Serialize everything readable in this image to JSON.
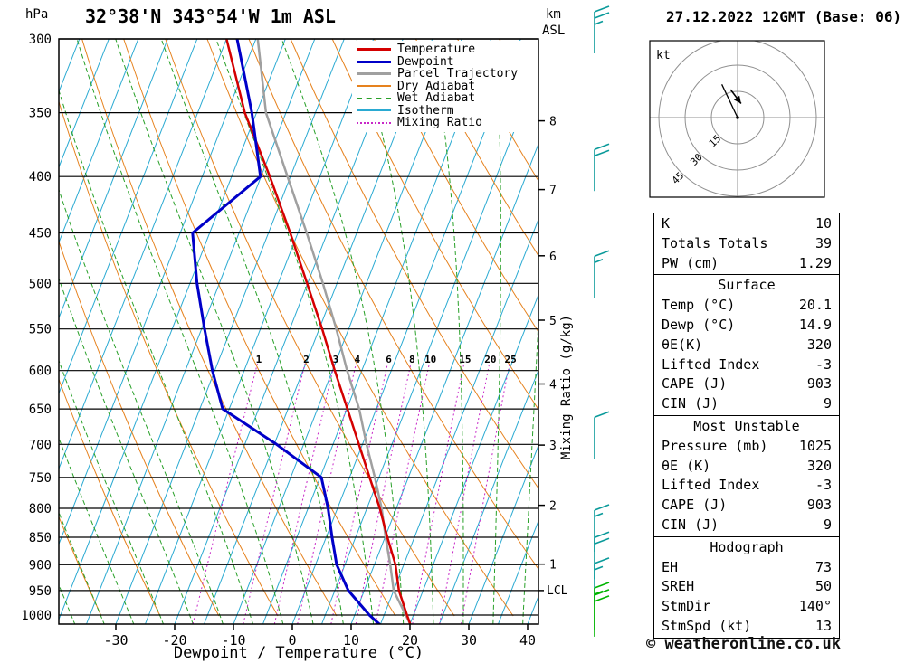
{
  "header": {
    "station_title": "32°38'N 343°54'W 1m ASL",
    "datetime_title": "27.12.2022 12GMT (Base: 06)"
  },
  "footer": {
    "copyright": "© weatheronline.co.uk"
  },
  "axes": {
    "pressure_unit": "hPa",
    "pressure_levels": [
      300,
      350,
      400,
      450,
      500,
      550,
      600,
      650,
      700,
      750,
      800,
      850,
      900,
      950,
      1000
    ],
    "km_unit_line1": "km",
    "km_unit_line2": "ASL",
    "km_levels": [
      {
        "km": 1,
        "p": 899
      },
      {
        "km": 2,
        "p": 795
      },
      {
        "km": 3,
        "p": 701
      },
      {
        "km": 4,
        "p": 617
      },
      {
        "km": 5,
        "p": 540
      },
      {
        "km": 6,
        "p": 472
      },
      {
        "km": 7,
        "p": 411
      },
      {
        "km": 8,
        "p": 356
      }
    ],
    "lcl": {
      "label": "LCL",
      "p": 950
    },
    "x_axis_title": "Dewpoint / Temperature (°C)",
    "x_ticks": [
      -30,
      -20,
      -10,
      0,
      10,
      20,
      30,
      40
    ],
    "mixing_ratio_axis_label": "Mixing Ratio (g/kg)"
  },
  "legend": [
    {
      "label": "Temperature",
      "color": "#d40000",
      "style": "solid",
      "width": 3
    },
    {
      "label": "Dewpoint",
      "color": "#0000c8",
      "style": "solid",
      "width": 3
    },
    {
      "label": "Parcel Trajectory",
      "color": "#a0a0a0",
      "style": "solid",
      "width": 3
    },
    {
      "label": "Dry Adiabat",
      "color": "#e6821e",
      "style": "solid",
      "width": 2
    },
    {
      "label": "Wet Adiabat",
      "color": "#28a028",
      "style": "dashed",
      "width": 2
    },
    {
      "label": "Isotherm",
      "color": "#2aaad2",
      "style": "solid",
      "width": 2
    },
    {
      "label": "Mixing Ratio",
      "color": "#c828c8",
      "style": "dotted",
      "width": 2
    }
  ],
  "chart_data": {
    "type": "skew-t-log-p-sounding",
    "pressure_top_hpa": 300,
    "pressure_bottom_hpa": 1020,
    "isotherms_c": {
      "start": -80,
      "end": 40,
      "step": 5
    },
    "dry_adiabats_k": {
      "start": 230,
      "end": 440,
      "step": 10
    },
    "wet_adiabats_c": {
      "start": -40,
      "end": 40,
      "step": 5
    },
    "mixing_ratio_lines_g_kg": [
      1,
      2,
      3,
      4,
      6,
      8,
      10,
      15,
      20,
      25
    ],
    "temperature_profile_p_t": [
      [
        1020,
        20.1
      ],
      [
        1000,
        18.9
      ],
      [
        950,
        15.9
      ],
      [
        900,
        13.6
      ],
      [
        850,
        10.4
      ],
      [
        800,
        7.2
      ],
      [
        750,
        3.4
      ],
      [
        700,
        -0.6
      ],
      [
        650,
        -4.9
      ],
      [
        600,
        -9.6
      ],
      [
        550,
        -14.5
      ],
      [
        500,
        -20.1
      ],
      [
        450,
        -26.3
      ],
      [
        400,
        -33.5
      ],
      [
        350,
        -42.0
      ],
      [
        300,
        -50.0
      ]
    ],
    "dewpoint_profile_p_t": [
      [
        1020,
        14.9
      ],
      [
        1000,
        12.5
      ],
      [
        950,
        7.3
      ],
      [
        900,
        3.6
      ],
      [
        850,
        1.0
      ],
      [
        800,
        -1.6
      ],
      [
        750,
        -4.8
      ],
      [
        700,
        -14.6
      ],
      [
        650,
        -26.1
      ],
      [
        600,
        -30.4
      ],
      [
        550,
        -34.5
      ],
      [
        500,
        -38.8
      ],
      [
        450,
        -42.9
      ],
      [
        400,
        -35.1
      ],
      [
        350,
        -40.8
      ],
      [
        300,
        -48.2
      ]
    ],
    "parcel_profile_p_t": [
      [
        1020,
        20.1
      ],
      [
        950,
        15.0
      ],
      [
        900,
        12.7
      ],
      [
        850,
        10.1
      ],
      [
        800,
        7.5
      ],
      [
        750,
        4.3
      ],
      [
        700,
        0.7
      ],
      [
        650,
        -2.9
      ],
      [
        600,
        -7.5
      ],
      [
        550,
        -12.1
      ],
      [
        500,
        -17.4
      ],
      [
        450,
        -23.5
      ],
      [
        400,
        -30.5
      ],
      [
        350,
        -38.4
      ],
      [
        300,
        -44.7
      ]
    ]
  },
  "wind_barbs": [
    {
      "p": 300,
      "full": 2,
      "half": 1,
      "color": "#0a9a9a"
    },
    {
      "p": 400,
      "full": 2,
      "half": 0,
      "color": "#0a9a9a"
    },
    {
      "p": 500,
      "full": 1,
      "half": 1,
      "color": "#0a9a9a"
    },
    {
      "p": 700,
      "full": 1,
      "half": 0,
      "color": "#0a9a9a"
    },
    {
      "p": 850,
      "full": 1,
      "half": 1,
      "color": "#0a9a9a"
    },
    {
      "p": 900,
      "full": 2,
      "half": 0,
      "color": "#0a9a9a"
    },
    {
      "p": 950,
      "full": 1,
      "half": 1,
      "color": "#0a9a9a"
    },
    {
      "p": 1000,
      "full": 1,
      "half": 1,
      "color": "#00b400"
    },
    {
      "p": 1015,
      "full": 2,
      "half": 0,
      "color": "#00b400"
    }
  ],
  "hodograph": {
    "unit_label": "kt",
    "rings_kt": [
      15,
      30,
      45
    ],
    "trace_kt": [
      [
        -9,
        19
      ],
      [
        0,
        0
      ]
    ],
    "arrow_kt": [
      [
        -4,
        16
      ],
      [
        2,
        8
      ]
    ]
  },
  "stats_panels": [
    {
      "name": "indices",
      "heading": null,
      "rows": [
        [
          "K",
          "10"
        ],
        [
          "Totals Totals",
          "39"
        ],
        [
          "PW (cm)",
          "1.29"
        ]
      ]
    },
    {
      "name": "surface",
      "heading": "Surface",
      "rows": [
        [
          "Temp (°C)",
          "20.1"
        ],
        [
          "Dewp (°C)",
          "14.9"
        ],
        [
          "θE(K)",
          "320"
        ],
        [
          "Lifted Index",
          "-3"
        ],
        [
          "CAPE (J)",
          "903"
        ],
        [
          "CIN (J)",
          "9"
        ]
      ]
    },
    {
      "name": "most-unstable",
      "heading": "Most Unstable",
      "rows": [
        [
          "Pressure (mb)",
          "1025"
        ],
        [
          "θE (K)",
          "320"
        ],
        [
          "Lifted Index",
          "-3"
        ],
        [
          "CAPE (J)",
          "903"
        ],
        [
          "CIN (J)",
          "9"
        ]
      ]
    },
    {
      "name": "hodograph",
      "heading": "Hodograph",
      "rows": [
        [
          "EH",
          "73"
        ],
        [
          "SREH",
          "50"
        ],
        [
          "StmDir",
          "140°"
        ],
        [
          "StmSpd (kt)",
          "13"
        ]
      ]
    }
  ],
  "colors": {
    "temperature": "#d40000",
    "dewpoint": "#0000c8",
    "parcel": "#a0a0a0",
    "dry_adiabat": "#e6821e",
    "wet_adiabat": "#28a028",
    "isotherm": "#2aaad2",
    "mixing_ratio": "#c828c8",
    "grid": "#000000",
    "barb_upper": "#0a9a9a",
    "barb_lower": "#00b400"
  }
}
